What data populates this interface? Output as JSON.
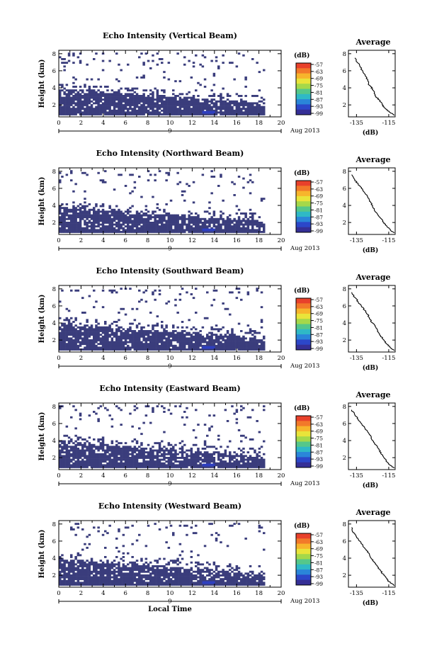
{
  "colors": {
    "data_fill": "#3a3d7c",
    "colorbar_top_to_bottom": [
      "#e8412b",
      "#f2792a",
      "#f7b52c",
      "#e9e43a",
      "#a5d84a",
      "#55c78a",
      "#2fb9c6",
      "#2a86d9",
      "#2c47c9",
      "#352f96"
    ]
  },
  "chart_data": [
    {
      "type": "heatmap",
      "title": "Echo Intensity (Vertical Beam)",
      "ylabel": "Height (km)",
      "xlabel": "",
      "x_ticks": [
        "0",
        "2",
        "4",
        "6",
        "8",
        "10",
        "12",
        "14",
        "16",
        "18",
        "20"
      ],
      "xlim": [
        0,
        20
      ],
      "y_ticks": [
        "2",
        "4",
        "6",
        "8"
      ],
      "ylim": [
        0.6,
        8.4
      ],
      "date_label": "9",
      "date_text": "Aug 2013",
      "colorbar": {
        "unit": "(dB)",
        "labels": [
          "-57",
          "-63",
          "-69",
          "-75",
          "-81",
          "-87",
          "-93",
          "-99"
        ]
      },
      "profile": {
        "title": "Average",
        "xlabel": "(dB)",
        "x_ticks": [
          "-135",
          "-115"
        ],
        "xlim": [
          -140,
          -111
        ],
        "y_ticks": [
          "2",
          "4",
          "6",
          "8"
        ],
        "x": [
          -111.5,
          -114,
          -116,
          -118,
          -119,
          -121,
          -123,
          -124,
          -125,
          -127,
          -128,
          -129,
          -131,
          -133,
          -136
        ],
        "y": [
          0.8,
          1.1,
          1.4,
          1.7,
          2.1,
          2.6,
          3.0,
          3.4,
          3.9,
          4.3,
          4.8,
          5.3,
          5.9,
          6.6,
          7.5
        ]
      }
    },
    {
      "type": "heatmap",
      "title": "Echo Intensity (Northward Beam)",
      "ylabel": "Height (km)",
      "xlabel": "",
      "x_ticks": [
        "0",
        "2",
        "4",
        "6",
        "8",
        "10",
        "12",
        "14",
        "16",
        "18",
        "20"
      ],
      "xlim": [
        0,
        20
      ],
      "y_ticks": [
        "2",
        "4",
        "6",
        "8"
      ],
      "ylim": [
        0.6,
        8.4
      ],
      "date_label": "9",
      "date_text": "Aug 2013",
      "colorbar": {
        "unit": "(dB)",
        "labels": [
          "-57",
          "-63",
          "-69",
          "-75",
          "-81",
          "-87",
          "-93",
          "-99"
        ]
      },
      "profile": {
        "title": "Average",
        "xlabel": "(dB)",
        "x_ticks": [
          "-135",
          "-115"
        ],
        "xlim": [
          -140,
          -111
        ],
        "y_ticks": [
          "2",
          "4",
          "6",
          "8"
        ],
        "x": [
          -111.5,
          -114,
          -116,
          -118,
          -120,
          -122,
          -124,
          -125,
          -127,
          -128,
          -130,
          -132,
          -134,
          -136,
          -138
        ],
        "y": [
          0.8,
          1.1,
          1.5,
          2.0,
          2.5,
          3.0,
          3.5,
          4.0,
          4.5,
          5.0,
          5.5,
          6.0,
          6.5,
          7.0,
          7.6
        ]
      }
    },
    {
      "type": "heatmap",
      "title": "Echo Intensity (Southward Beam)",
      "ylabel": "Height (km)",
      "xlabel": "",
      "x_ticks": [
        "0",
        "2",
        "4",
        "6",
        "8",
        "10",
        "12",
        "14",
        "16",
        "18",
        "20"
      ],
      "xlim": [
        0,
        20
      ],
      "y_ticks": [
        "2",
        "4",
        "6",
        "8"
      ],
      "ylim": [
        0.6,
        8.4
      ],
      "date_label": "9",
      "date_text": "Aug 2013",
      "colorbar": {
        "unit": "(dB)",
        "labels": [
          "-57",
          "-63",
          "-69",
          "-75",
          "-81",
          "-87",
          "-93",
          "-99"
        ]
      },
      "profile": {
        "title": "Average",
        "xlabel": "(dB)",
        "x_ticks": [
          "-135",
          "-115"
        ],
        "xlim": [
          -140,
          -111
        ],
        "y_ticks": [
          "2",
          "4",
          "6",
          "8"
        ],
        "x": [
          -111.5,
          -114,
          -116,
          -118,
          -120,
          -122,
          -123,
          -125,
          -127,
          -128,
          -130,
          -132,
          -134,
          -136,
          -138
        ],
        "y": [
          0.8,
          1.1,
          1.5,
          2.0,
          2.5,
          3.0,
          3.5,
          4.0,
          4.5,
          5.0,
          5.5,
          6.0,
          6.5,
          7.0,
          7.6
        ]
      }
    },
    {
      "type": "heatmap",
      "title": "Echo Intensity (Eastward Beam)",
      "ylabel": "Height (km)",
      "xlabel": "",
      "x_ticks": [
        "0",
        "2",
        "4",
        "6",
        "8",
        "10",
        "12",
        "14",
        "16",
        "18",
        "20"
      ],
      "xlim": [
        0,
        20
      ],
      "y_ticks": [
        "2",
        "4",
        "6",
        "8"
      ],
      "ylim": [
        0.6,
        8.4
      ],
      "date_label": "9",
      "date_text": "Aug 2013",
      "colorbar": {
        "unit": "(dB)",
        "labels": [
          "-57",
          "-63",
          "-69",
          "-75",
          "-81",
          "-87",
          "-93",
          "-99"
        ]
      },
      "profile": {
        "title": "Average",
        "xlabel": "(dB)",
        "x_ticks": [
          "-135",
          "-115"
        ],
        "xlim": [
          -140,
          -111
        ],
        "y_ticks": [
          "2",
          "4",
          "6",
          "8"
        ],
        "x": [
          -111.5,
          -114,
          -116,
          -118,
          -120,
          -121,
          -123,
          -125,
          -126,
          -128,
          -130,
          -132,
          -134,
          -136,
          -138
        ],
        "y": [
          0.8,
          1.1,
          1.5,
          2.0,
          2.5,
          3.0,
          3.5,
          4.0,
          4.5,
          5.0,
          5.5,
          6.0,
          6.5,
          7.0,
          7.6
        ]
      }
    },
    {
      "type": "heatmap",
      "title": "Echo Intensity (Westward Beam)",
      "ylabel": "Height (km)",
      "xlabel": "Local Time",
      "x_ticks": [
        "0",
        "2",
        "4",
        "6",
        "8",
        "10",
        "12",
        "14",
        "16",
        "18",
        "20"
      ],
      "xlim": [
        0,
        20
      ],
      "y_ticks": [
        "2",
        "4",
        "6",
        "8"
      ],
      "ylim": [
        0.6,
        8.4
      ],
      "date_label": "9",
      "date_text": "Aug 2013",
      "colorbar": {
        "unit": "(dB)",
        "labels": [
          "-57",
          "-63",
          "-69",
          "-75",
          "-81",
          "-87",
          "-93",
          "-99"
        ]
      },
      "profile": {
        "title": "Average",
        "xlabel": "(dB)",
        "x_ticks": [
          "-135",
          "-115"
        ],
        "xlim": [
          -140,
          -111
        ],
        "y_ticks": [
          "2",
          "4",
          "6",
          "8"
        ],
        "x": [
          -111.5,
          -114,
          -116,
          -118,
          -120,
          -122,
          -124,
          -126,
          -127,
          -129,
          -131,
          -133,
          -135,
          -137,
          -138
        ],
        "y": [
          0.8,
          1.1,
          1.5,
          2.0,
          2.5,
          3.0,
          3.5,
          4.0,
          4.5,
          5.0,
          5.5,
          6.0,
          6.5,
          7.0,
          7.6
        ]
      }
    }
  ]
}
